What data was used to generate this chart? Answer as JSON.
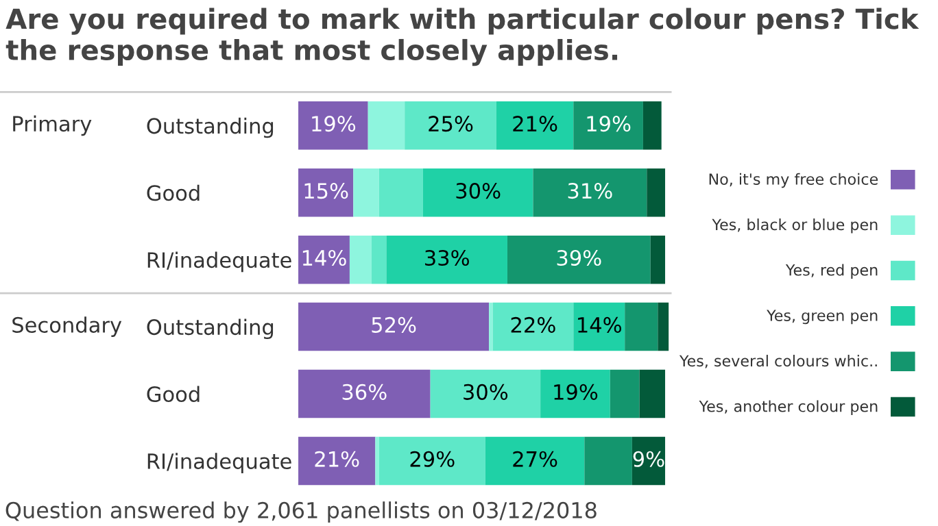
{
  "chart_data": {
    "type": "bar",
    "orientation": "horizontal",
    "stacked": true,
    "title": "Are you required to mark with particular colour pens? Tick the response that most closely applies.",
    "categories": [
      "Outstanding",
      "Good",
      "RI/inadequate",
      "Outstanding",
      "Good",
      "RI/inadequate"
    ],
    "series": [
      {
        "name": "No, it's my free choice",
        "color": "#7f5fb4",
        "values": [
          19,
          15,
          14,
          52,
          36,
          21
        ],
        "value_labels": [
          "19%",
          "15%",
          "14%",
          "52%",
          "36%",
          "21%"
        ]
      },
      {
        "name": "Yes, black or blue pen",
        "color": "#8ef5de",
        "values": [
          10,
          7,
          6,
          1,
          0,
          1
        ],
        "value_labels": [
          null,
          null,
          null,
          null,
          null,
          null
        ]
      },
      {
        "name": "Yes, red pen",
        "color": "#5ee8c8",
        "values": [
          25,
          12,
          4,
          22,
          30,
          29
        ],
        "value_labels": [
          "25%",
          null,
          null,
          "22%",
          "30%",
          "29%"
        ]
      },
      {
        "name": "Yes, green pen",
        "color": "#1fd1a6",
        "values": [
          21,
          30,
          33,
          14,
          19,
          27
        ],
        "value_labels": [
          "21%",
          "30%",
          "33%",
          "14%",
          "19%",
          "27%"
        ]
      },
      {
        "name": "Yes, several colours whic..",
        "color": "#14966e",
        "values": [
          19,
          31,
          39,
          9,
          8,
          13
        ],
        "value_labels": [
          "19%",
          "31%",
          "39%",
          null,
          null,
          null
        ]
      },
      {
        "name": "Yes, another colour pen",
        "color": "#035a3a",
        "values": [
          5,
          5,
          4,
          3,
          7,
          9
        ],
        "value_labels": [
          null,
          null,
          null,
          null,
          null,
          "9%"
        ]
      }
    ],
    "annotations": [
      "Primary",
      "Secondary",
      "Question answered by 2,061 panellists on 03/12/2018"
    ],
    "legend": "right",
    "tick_labels": "y"
  }
}
